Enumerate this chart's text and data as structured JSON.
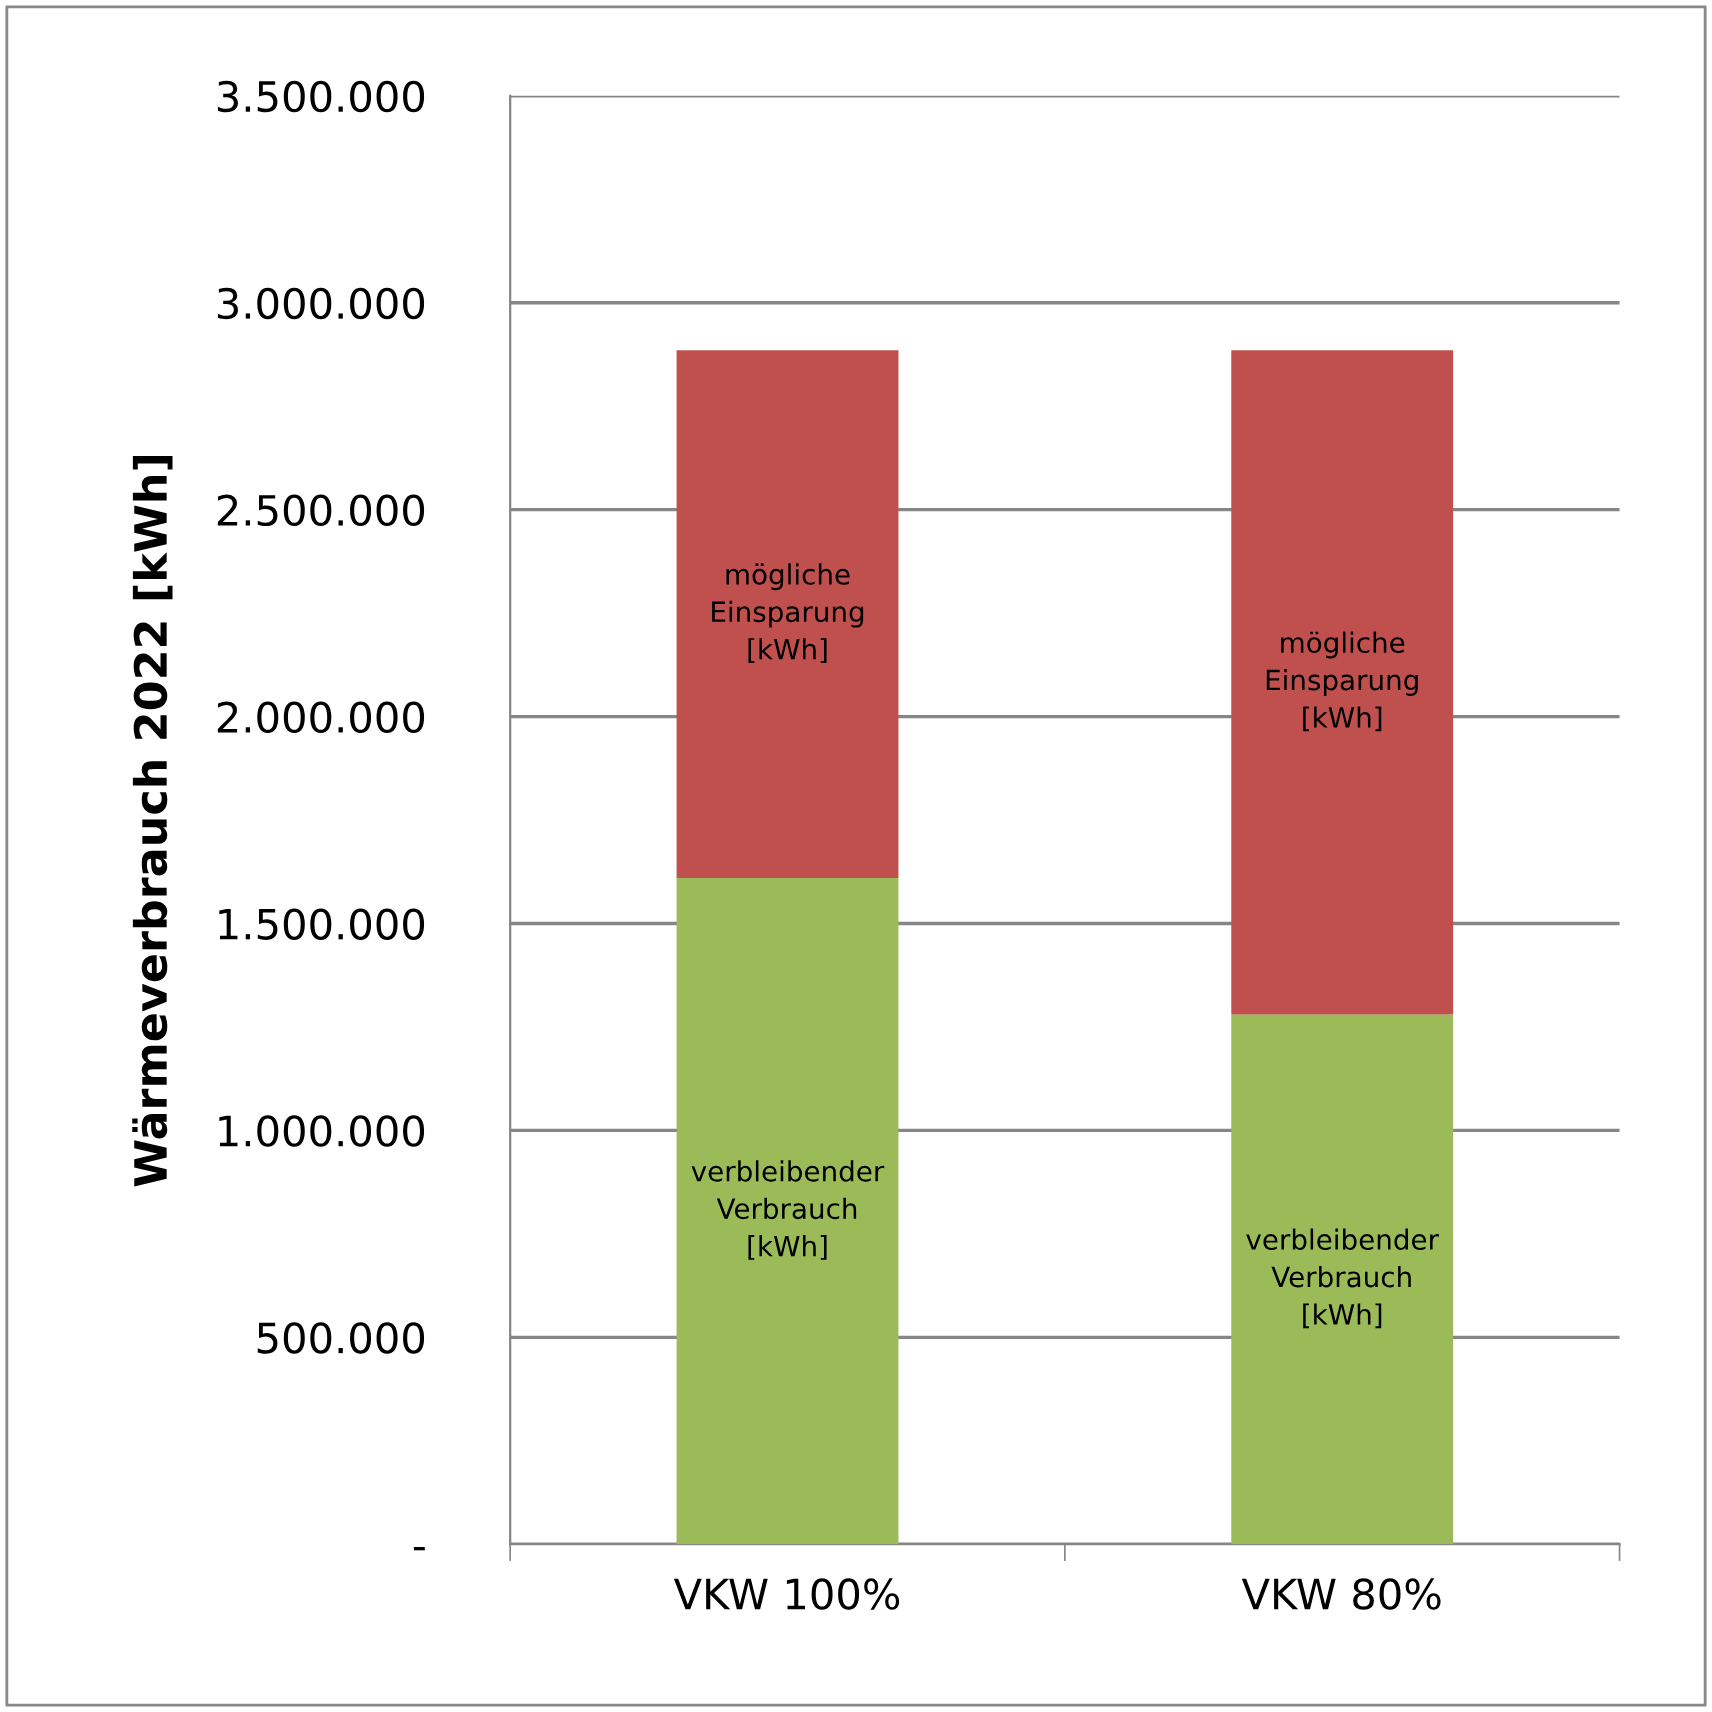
{
  "chart_data": {
    "type": "bar",
    "stacked": true,
    "ylabel": "Wärmeverbrauch 2022 [kWh]",
    "categories": [
      "VKW 100%",
      "VKW 80%"
    ],
    "series": [
      {
        "name": "verbleibender\nVerbrauch\n[kWh]",
        "color": "#9bbb59",
        "values": [
          1610000,
          1280000
        ]
      },
      {
        "name": "mögliche\nEinsparung\n[kWh]",
        "color": "#c0504d",
        "values": [
          1275000,
          1605000
        ]
      }
    ],
    "ylim": [
      0,
      3500000
    ],
    "yticks": [
      {
        "value": 0,
        "label": "-"
      },
      {
        "value": 500000,
        "label": "500.000"
      },
      {
        "value": 1000000,
        "label": "1.000.000"
      },
      {
        "value": 1500000,
        "label": "1.500.000"
      },
      {
        "value": 2000000,
        "label": "2.000.000"
      },
      {
        "value": 2500000,
        "label": "2.500.000"
      },
      {
        "value": 3000000,
        "label": "3.000.000"
      },
      {
        "value": 3500000,
        "label": "3.500.000"
      }
    ],
    "grid": "y",
    "legend": false
  }
}
